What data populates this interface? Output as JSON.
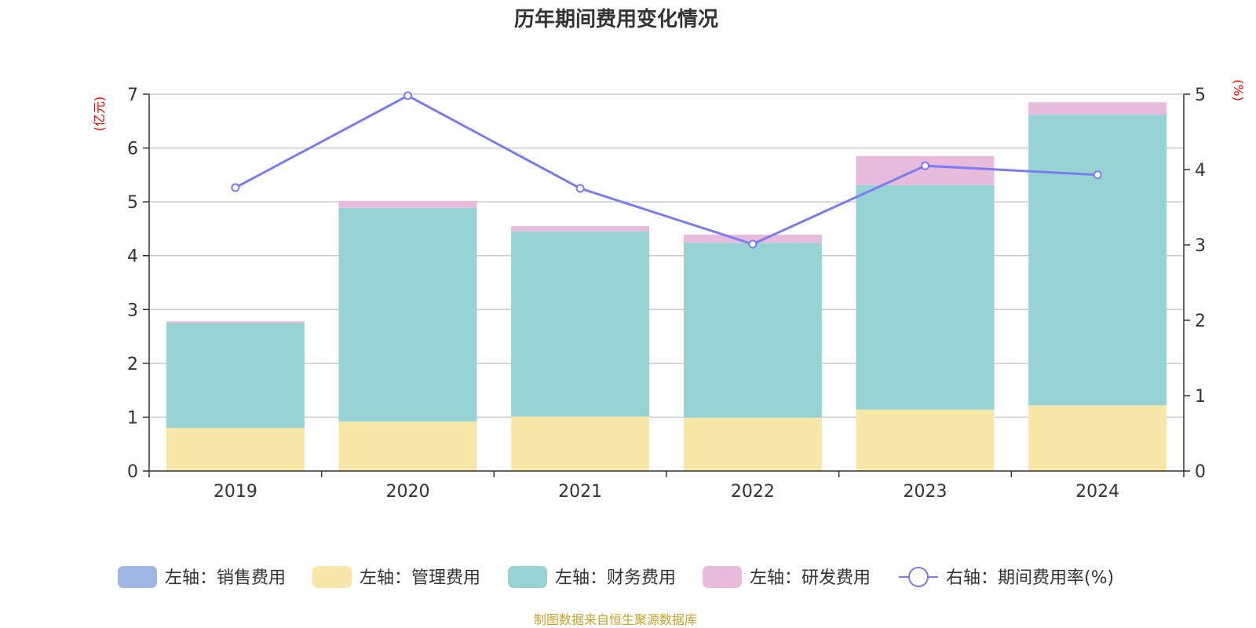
{
  "chart_data": {
    "type": "bar",
    "stacked": true,
    "title": "历年期间费用变化情况",
    "categories": [
      "2019",
      "2020",
      "2021",
      "2022",
      "2023",
      "2024"
    ],
    "left_axis": {
      "unit_label": "(亿元)",
      "ylim": [
        0,
        7
      ],
      "ticks": [
        "0",
        "1",
        "2",
        "3",
        "4",
        "5",
        "6",
        "7"
      ]
    },
    "right_axis": {
      "unit_label": "(%)",
      "ylim": [
        0,
        5
      ],
      "ticks": [
        "0",
        "1",
        "2",
        "3",
        "4",
        "5"
      ]
    },
    "series": [
      {
        "name": "左轴：销售费用",
        "axis": "left",
        "kind": "bar",
        "color": "#9db6e4",
        "values": [
          0,
          0,
          0,
          0,
          0,
          0
        ]
      },
      {
        "name": "左轴：管理费用",
        "axis": "left",
        "kind": "bar",
        "color": "#f7e7a8",
        "values": [
          0.8,
          0.92,
          1.01,
          0.99,
          1.14,
          1.22
        ]
      },
      {
        "name": "左轴：财务费用",
        "axis": "left",
        "kind": "bar",
        "color": "#98d3d4",
        "values": [
          1.95,
          3.97,
          3.44,
          3.25,
          4.17,
          5.4
        ]
      },
      {
        "name": "左轴：研发费用",
        "axis": "left",
        "kind": "bar",
        "color": "#e8bbdc",
        "values": [
          0.03,
          0.13,
          0.1,
          0.15,
          0.54,
          0.23
        ]
      },
      {
        "name": "右轴：期间费用率(%)",
        "axis": "right",
        "kind": "line",
        "color": "#7b7cf0",
        "values": [
          3.76,
          4.98,
          3.75,
          3.01,
          4.05,
          3.93
        ]
      }
    ],
    "legend_position": "bottom"
  },
  "source": "制图数据来自恒生聚源数据库"
}
